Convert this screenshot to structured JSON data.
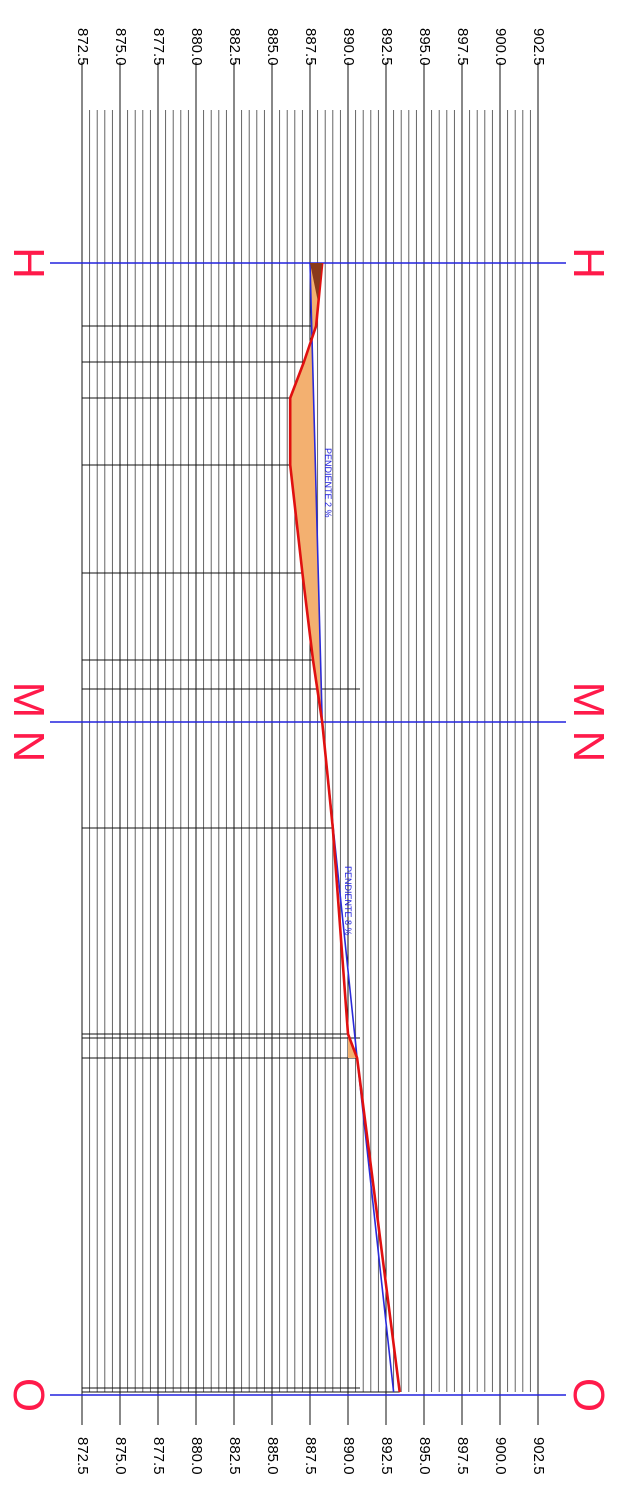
{
  "elevation_ticks": [
    "872.5",
    "875.0",
    "877.5",
    "880.0",
    "882.5",
    "885.0",
    "887.5",
    "890.0",
    "892.5",
    "895.0",
    "897.5",
    "900.0",
    "902.5"
  ],
  "elevation_ticks_bottom": [
    "872.5",
    "875.0",
    "877.5",
    "880.0",
    "882.5",
    "885.0",
    "887.5",
    "890.0",
    "892.5",
    "895.0",
    "897.5",
    "900.0",
    "902.5"
  ],
  "stations": [
    {
      "label": "H"
    },
    {
      "label": "M N"
    },
    {
      "label": "O"
    }
  ],
  "annotations": [
    {
      "text": "PENDIENTE 2 %"
    },
    {
      "text": "PENDIENTE 8 %"
    }
  ],
  "colors": {
    "station_line": "#2222dd",
    "station_label": "#ff1a4a",
    "terrain": "#e01010",
    "fill": "#f3b070",
    "grade_line": "#2a2ad8",
    "grid": "#555555"
  },
  "chart_data": {
    "type": "line",
    "orientation": "rotated 90° (elevation runs left-to-right, chainage runs top-to-bottom)",
    "elevation_range": [
      872.5,
      902.5
    ],
    "series": [
      {
        "role": "terrain",
        "points": [
          {
            "station_y": 263,
            "elev": 888.3
          },
          {
            "station_y": 326,
            "elev": 887.9
          },
          {
            "station_y": 362,
            "elev": 887.1
          },
          {
            "station_y": 398,
            "elev": 886.2
          },
          {
            "station_y": 465,
            "elev": 886.2
          },
          {
            "station_y": 573,
            "elev": 887.0
          },
          {
            "station_y": 660,
            "elev": 887.7
          },
          {
            "station_y": 722,
            "elev": 888.3
          },
          {
            "station_y": 828,
            "elev": 889.0
          },
          {
            "station_y": 1034,
            "elev": 890.0
          },
          {
            "station_y": 1058,
            "elev": 890.6
          },
          {
            "station_y": 1392,
            "elev": 893.4
          }
        ]
      },
      {
        "role": "grade",
        "points": [
          {
            "station_y": 263,
            "elev": 887.5
          },
          {
            "station_y": 722,
            "elev": 888.3
          },
          {
            "station_y": 1058,
            "elev": 890.6
          },
          {
            "station_y": 1392,
            "elev": 893.0
          }
        ]
      }
    ]
  }
}
